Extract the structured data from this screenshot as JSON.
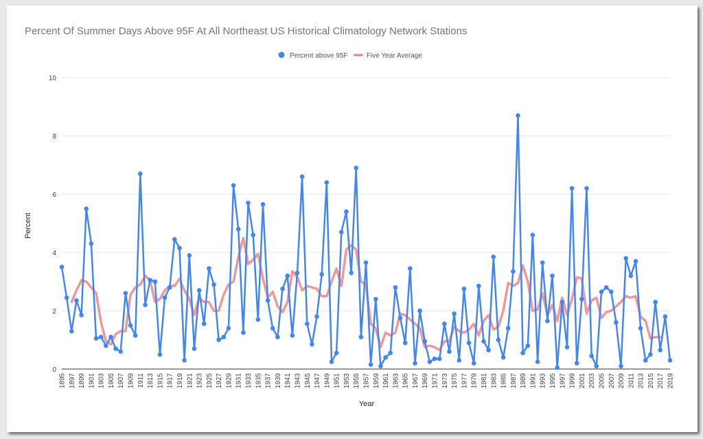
{
  "chart_data": {
    "type": "line",
    "title": "Percent Of Summer Days Above 95F At All Northeast US Historical Climatology Network Stations",
    "xlabel": "Year",
    "ylabel": "Percent",
    "ylim": [
      0,
      10
    ],
    "yticks": [
      0,
      2,
      4,
      6,
      8,
      10
    ],
    "xlim": [
      1895,
      2019
    ],
    "xtick_step": 2,
    "grid": true,
    "legend_position": "top",
    "series": [
      {
        "name": "Percent above 95F",
        "color": "#4285f4",
        "marker": "circle",
        "x": [
          1895,
          1896,
          1897,
          1898,
          1899,
          1900,
          1901,
          1902,
          1903,
          1904,
          1905,
          1906,
          1907,
          1908,
          1909,
          1910,
          1911,
          1912,
          1913,
          1914,
          1915,
          1916,
          1917,
          1918,
          1919,
          1920,
          1921,
          1922,
          1923,
          1924,
          1925,
          1926,
          1927,
          1928,
          1929,
          1930,
          1931,
          1932,
          1933,
          1934,
          1935,
          1936,
          1937,
          1938,
          1939,
          1940,
          1941,
          1942,
          1943,
          1944,
          1945,
          1946,
          1947,
          1948,
          1949,
          1950,
          1951,
          1952,
          1953,
          1954,
          1955,
          1956,
          1957,
          1958,
          1959,
          1960,
          1961,
          1962,
          1963,
          1964,
          1965,
          1966,
          1967,
          1968,
          1969,
          1970,
          1971,
          1972,
          1973,
          1974,
          1975,
          1976,
          1977,
          1978,
          1979,
          1980,
          1981,
          1982,
          1983,
          1984,
          1985,
          1986,
          1987,
          1988,
          1989,
          1990,
          1991,
          1992,
          1993,
          1994,
          1995,
          1996,
          1997,
          1998,
          1999,
          2000,
          2001,
          2002,
          2003,
          2004,
          2005,
          2006,
          2007,
          2008,
          2009,
          2010,
          2011,
          2012,
          2013,
          2014,
          2015,
          2016,
          2017,
          2018,
          2019
        ],
        "y": [
          3.5,
          2.45,
          1.3,
          2.35,
          1.85,
          5.5,
          4.3,
          1.05,
          1.1,
          0.8,
          1.1,
          0.7,
          0.6,
          2.6,
          1.5,
          1.15,
          6.7,
          2.2,
          3.05,
          3.0,
          0.5,
          2.45,
          2.8,
          4.45,
          4.15,
          0.3,
          3.9,
          0.7,
          2.7,
          1.55,
          3.45,
          2.9,
          1.0,
          1.1,
          1.4,
          6.3,
          4.8,
          1.25,
          5.7,
          4.6,
          1.7,
          5.65,
          2.35,
          1.4,
          1.1,
          2.75,
          3.2,
          1.15,
          3.3,
          6.6,
          1.55,
          0.85,
          1.8,
          3.25,
          6.4,
          0.25,
          0.55,
          4.7,
          5.4,
          3.3,
          6.9,
          1.1,
          3.65,
          0.15,
          2.4,
          0.1,
          0.4,
          0.55,
          2.8,
          1.75,
          0.9,
          3.45,
          0.2,
          2.0,
          0.95,
          0.25,
          0.35,
          0.35,
          1.55,
          0.6,
          1.9,
          0.3,
          2.75,
          0.9,
          0.2,
          2.85,
          0.95,
          0.65,
          3.85,
          1.0,
          0.4,
          1.4,
          3.35,
          8.7,
          0.55,
          0.8,
          4.6,
          0.25,
          3.65,
          1.65,
          3.2,
          0.05,
          2.3,
          0.75,
          6.2,
          0.2,
          2.4,
          6.2,
          0.45,
          0.1,
          2.65,
          2.8,
          2.65,
          1.6,
          0.1,
          3.8,
          3.2,
          3.7,
          1.4,
          0.3,
          0.5,
          2.3,
          0.65,
          1.8,
          0.3
        ]
      },
      {
        "name": "Five Year Average",
        "color": "#f28b8b",
        "x": [
          1897,
          1898,
          1899,
          1900,
          1901,
          1902,
          1903,
          1904,
          1905,
          1906,
          1907,
          1908,
          1909,
          1910,
          1911,
          1912,
          1913,
          1914,
          1915,
          1916,
          1917,
          1918,
          1919,
          1920,
          1921,
          1922,
          1923,
          1924,
          1925,
          1926,
          1927,
          1928,
          1929,
          1930,
          1931,
          1932,
          1933,
          1934,
          1935,
          1936,
          1937,
          1938,
          1939,
          1940,
          1941,
          1942,
          1943,
          1944,
          1945,
          1946,
          1947,
          1948,
          1949,
          1950,
          1951,
          1952,
          1953,
          1954,
          1955,
          1956,
          1957,
          1958,
          1959,
          1960,
          1961,
          1962,
          1963,
          1964,
          1965,
          1966,
          1967,
          1968,
          1969,
          1970,
          1971,
          1972,
          1973,
          1974,
          1975,
          1976,
          1977,
          1978,
          1979,
          1980,
          1981,
          1982,
          1983,
          1984,
          1985,
          1986,
          1987,
          1988,
          1989,
          1990,
          1991,
          1992,
          1993,
          1994,
          1995,
          1996,
          1997,
          1998,
          1999,
          2000,
          2001,
          2002,
          2003,
          2004,
          2005,
          2006,
          2007,
          2008,
          2009,
          2010,
          2011,
          2012,
          2013,
          2014,
          2015,
          2016,
          2017
        ],
        "y": [
          2.3,
          2.7,
          3.05,
          3.0,
          2.8,
          2.6,
          1.6,
          0.95,
          0.85,
          1.2,
          1.3,
          1.3,
          2.55,
          2.8,
          2.9,
          3.2,
          3.05,
          2.3,
          2.4,
          2.7,
          2.85,
          2.85,
          3.1,
          2.7,
          2.4,
          1.85,
          2.45,
          2.3,
          2.3,
          2.0,
          2.0,
          2.55,
          2.9,
          3.0,
          3.85,
          4.5,
          3.6,
          3.75,
          3.95,
          3.1,
          2.45,
          2.65,
          2.15,
          1.95,
          2.3,
          3.35,
          3.15,
          2.7,
          2.85,
          2.8,
          2.75,
          2.5,
          2.5,
          3.0,
          3.45,
          2.85,
          4.1,
          4.25,
          4.1,
          3.0,
          2.9,
          1.55,
          1.4,
          0.75,
          1.25,
          1.15,
          1.25,
          1.9,
          1.85,
          1.7,
          1.55,
          1.4,
          0.75,
          0.8,
          0.75,
          0.65,
          0.95,
          0.95,
          1.45,
          1.3,
          1.25,
          1.35,
          1.55,
          1.15,
          1.65,
          1.85,
          1.35,
          1.45,
          2.0,
          2.95,
          2.85,
          2.95,
          3.55,
          3.0,
          2.0,
          2.05,
          2.6,
          1.85,
          2.2,
          1.65,
          2.45,
          1.85,
          2.4,
          3.15,
          3.1,
          1.9,
          2.35,
          2.45,
          1.75,
          1.95,
          2.0,
          2.15,
          2.3,
          2.5,
          2.45,
          2.5,
          1.8,
          1.65,
          1.05,
          1.1,
          1.1
        ]
      }
    ]
  }
}
